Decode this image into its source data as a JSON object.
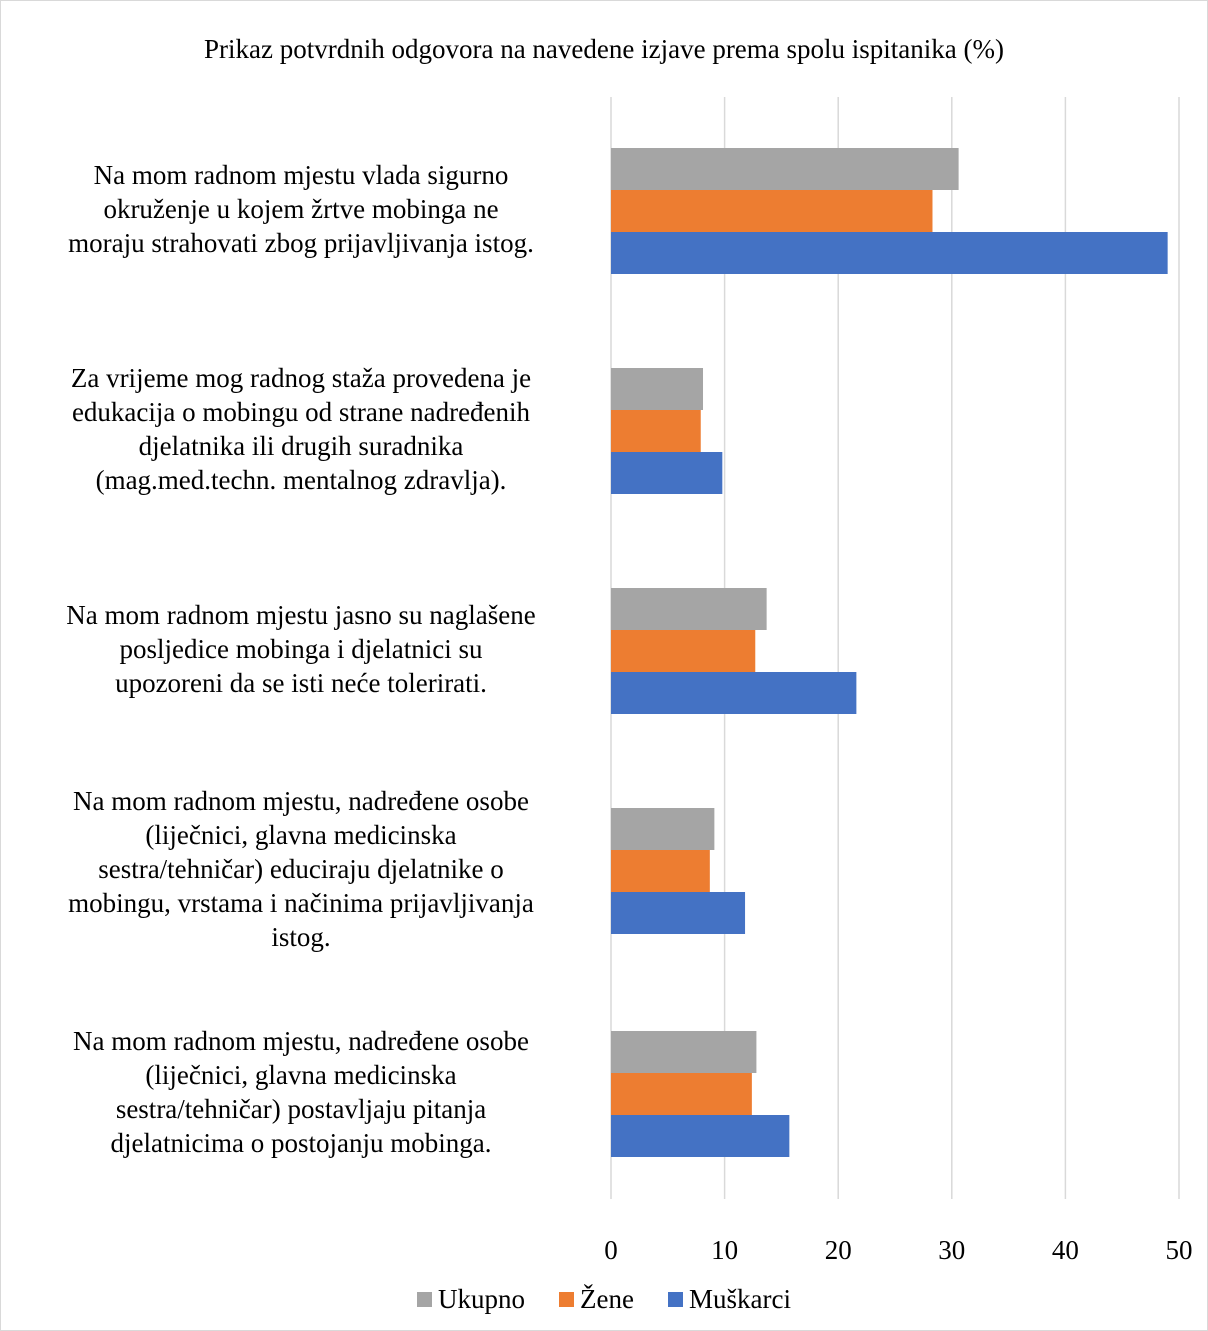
{
  "chart_data": {
    "type": "bar",
    "orientation": "horizontal",
    "title": "Prikaz potvrdnih odgovora na navedene izjave prema spolu ispitanika (%)",
    "xlabel": "",
    "ylabel": "",
    "xlim": [
      0,
      50
    ],
    "x_ticks": [
      "0",
      "10",
      "20",
      "30",
      "40",
      "50"
    ],
    "grid": true,
    "legend_position": "bottom",
    "categories": [
      "Na mom radnom mjestu vlada sigurno okruženje u kojem žrtve mobinga ne moraju strahovati zbog prijavljivanja istog.",
      "Za vrijeme mog radnog staža provedena je edukacija o mobingu od strane nadređenih djelatnika ili drugih suradnika (mag.med.techn. mentalnog zdravlja).",
      "Na mom radnom mjestu jasno su naglašene posljedice mobinga i djelatnici su upozoreni da se isti neće tolerirati.",
      "Na mom radnom mjestu, nadređene osobe (liječnici, glavna medicinska sestra/tehničar) educiraju djelatnike o mobingu, vrstama i načinima prijavljivanja istog.",
      "Na mom radnom mjestu, nadređene osobe (liječnici, glavna medicinska sestra/tehničar) postavljaju pitanja djelatnicima o postojanju mobinga."
    ],
    "category_lines": [
      [
        "Na mom radnom mjestu vlada sigurno",
        "okruženje u kojem žrtve mobinga ne",
        "moraju strahovati zbog prijavljivanja istog."
      ],
      [
        "Za vrijeme mog radnog staža provedena je",
        "edukacija o mobingu od strane nadređenih",
        "djelatnika ili drugih suradnika",
        "(mag.med.techn. mentalnog zdravlja)."
      ],
      [
        "Na mom radnom mjestu jasno su naglašene",
        "posljedice mobinga i djelatnici su",
        "upozoreni da se isti neće tolerirati."
      ],
      [
        "Na mom radnom mjestu, nadređene osobe",
        "(liječnici, glavna medicinska",
        "sestra/tehničar) educiraju djelatnike o",
        "mobingu, vrstama i načinima prijavljivanja",
        "istog."
      ],
      [
        "Na mom radnom mjestu, nadređene osobe",
        "(liječnici, glavna medicinska",
        "sestra/tehničar) postavljaju pitanja",
        "djelatnicima o postojanju mobinga."
      ]
    ],
    "series": [
      {
        "name": "Ukupno",
        "color": "#a5a5a5",
        "values": [
          30.6,
          8.1,
          13.7,
          9.1,
          12.8
        ]
      },
      {
        "name": "Žene",
        "color": "#ed7d31",
        "values": [
          28.3,
          7.9,
          12.7,
          8.7,
          12.4
        ]
      },
      {
        "name": "Muškarci",
        "color": "#4472c4",
        "values": [
          49.0,
          9.8,
          21.6,
          11.8,
          15.7
        ]
      }
    ]
  }
}
